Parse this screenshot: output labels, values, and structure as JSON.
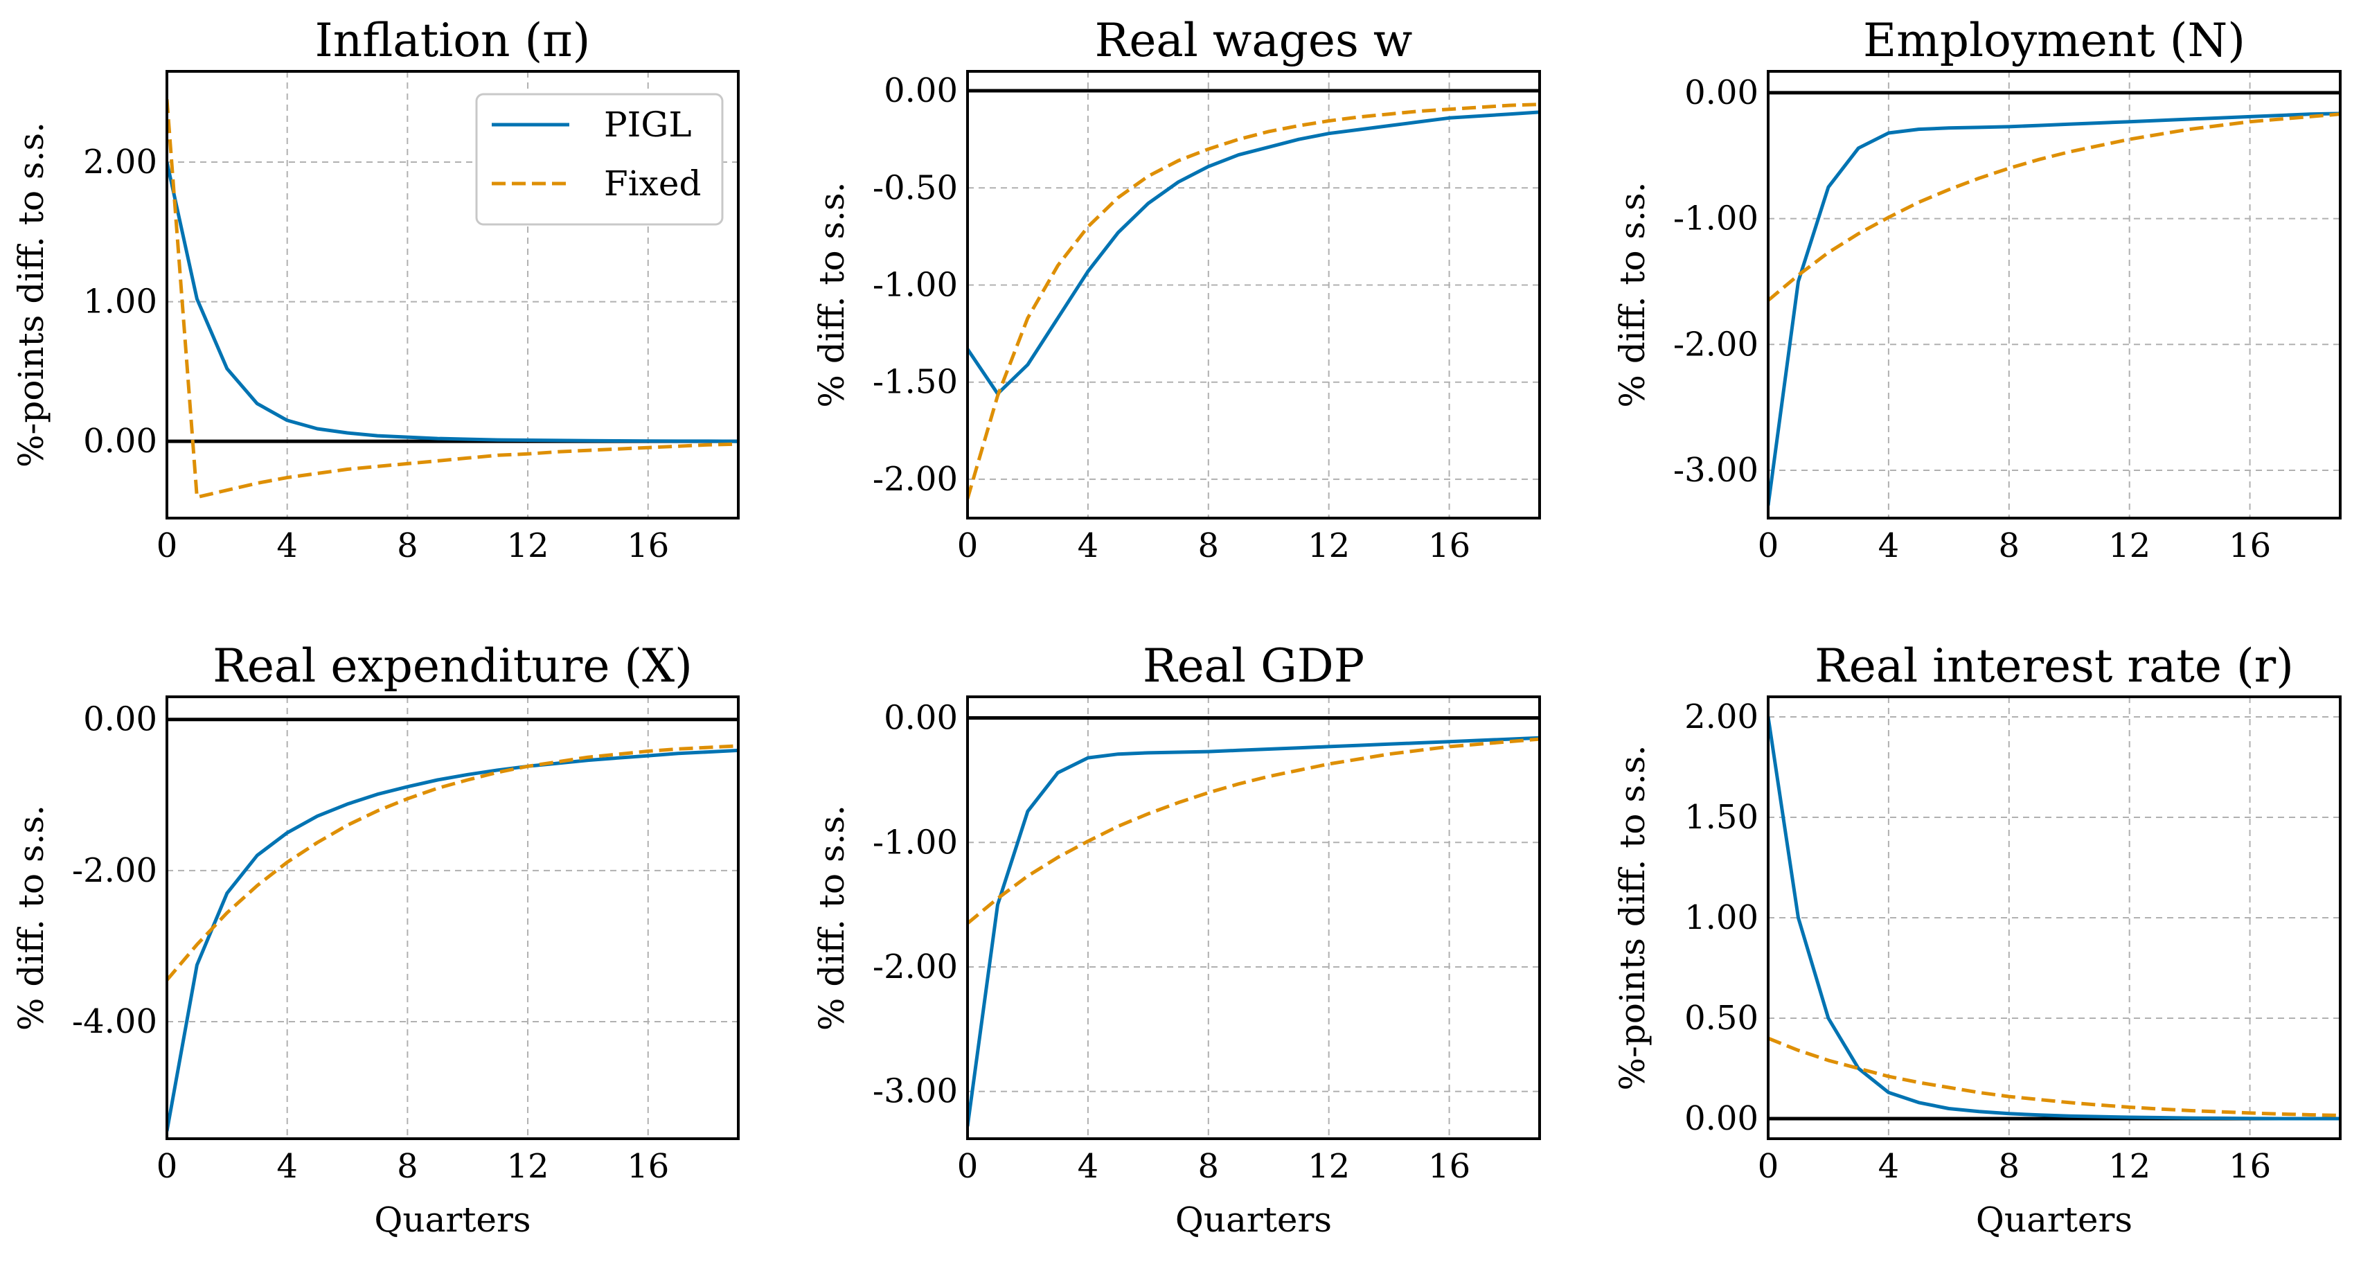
{
  "figure": {
    "legend": {
      "entries": [
        "PIGL",
        "Fixed"
      ],
      "placement": "upper-right of first panel"
    },
    "colors": {
      "PIGL": "#0173b2",
      "Fixed": "#de8f05",
      "zero_line": "#000000",
      "grid": "#b0b0b0"
    }
  },
  "chart_data": [
    {
      "type": "line",
      "title": "Inflation (π)",
      "ylabel": "%-points diff. to s.s.",
      "xlabel": "",
      "xlim": [
        0,
        19
      ],
      "ylim": [
        -0.55,
        2.65
      ],
      "xticks": [
        0,
        4,
        8,
        12,
        16
      ],
      "yticks": [
        0,
        1,
        2
      ],
      "ytick_labels": [
        "0.00",
        "1.00",
        "2.00"
      ],
      "grid": true,
      "legend": true,
      "x": [
        0,
        1,
        2,
        3,
        4,
        5,
        6,
        7,
        8,
        9,
        10,
        11,
        12,
        13,
        14,
        15,
        16,
        17,
        18,
        19
      ],
      "series": [
        {
          "name": "PIGL",
          "style": "solid",
          "values": [
            2.0,
            1.02,
            0.52,
            0.27,
            0.15,
            0.09,
            0.06,
            0.04,
            0.03,
            0.02,
            0.015,
            0.01,
            0.008,
            0.006,
            0.004,
            0.003,
            0.002,
            0.001,
            0.001,
            0.0
          ]
        },
        {
          "name": "Fixed",
          "style": "dashed",
          "values": [
            2.45,
            -0.4,
            -0.35,
            -0.3,
            -0.26,
            -0.23,
            -0.2,
            -0.18,
            -0.16,
            -0.14,
            -0.12,
            -0.1,
            -0.09,
            -0.075,
            -0.065,
            -0.055,
            -0.045,
            -0.035,
            -0.025,
            -0.02
          ]
        }
      ]
    },
    {
      "type": "line",
      "title": "Real wages w",
      "ylabel": "% diff. to s.s.",
      "xlabel": "",
      "xlim": [
        0,
        19
      ],
      "ylim": [
        -2.2,
        0.1
      ],
      "xticks": [
        0,
        4,
        8,
        12,
        16
      ],
      "yticks": [
        0,
        -0.5,
        -1,
        -1.5,
        -2
      ],
      "ytick_labels": [
        "0.00",
        "-0.50",
        "-1.00",
        "-1.50",
        "-2.00"
      ],
      "grid": true,
      "legend": false,
      "x": [
        0,
        1,
        2,
        3,
        4,
        5,
        6,
        7,
        8,
        9,
        10,
        11,
        12,
        13,
        14,
        15,
        16,
        17,
        18,
        19
      ],
      "series": [
        {
          "name": "PIGL",
          "style": "solid",
          "values": [
            -1.33,
            -1.56,
            -1.41,
            -1.17,
            -0.93,
            -0.73,
            -0.58,
            -0.47,
            -0.39,
            -0.33,
            -0.29,
            -0.25,
            -0.22,
            -0.2,
            -0.18,
            -0.16,
            -0.14,
            -0.13,
            -0.12,
            -0.11
          ]
        },
        {
          "name": "Fixed",
          "style": "dashed",
          "values": [
            -2.1,
            -1.57,
            -1.17,
            -0.9,
            -0.7,
            -0.55,
            -0.44,
            -0.36,
            -0.3,
            -0.25,
            -0.21,
            -0.18,
            -0.155,
            -0.135,
            -0.12,
            -0.105,
            -0.095,
            -0.085,
            -0.075,
            -0.07
          ]
        }
      ]
    },
    {
      "type": "line",
      "title": "Employment (N)",
      "ylabel": "% diff. to s.s.",
      "xlabel": "",
      "xlim": [
        0,
        19
      ],
      "ylim": [
        -3.38,
        0.17
      ],
      "xticks": [
        0,
        4,
        8,
        12,
        16
      ],
      "yticks": [
        0,
        -1,
        -2,
        -3
      ],
      "ytick_labels": [
        "0.00",
        "-1.00",
        "-2.00",
        "-3.00"
      ],
      "grid": true,
      "legend": false,
      "x": [
        0,
        1,
        2,
        3,
        4,
        5,
        6,
        7,
        8,
        9,
        10,
        11,
        12,
        13,
        14,
        15,
        16,
        17,
        18,
        19
      ],
      "series": [
        {
          "name": "PIGL",
          "style": "solid",
          "values": [
            -3.28,
            -1.5,
            -0.75,
            -0.44,
            -0.32,
            -0.29,
            -0.28,
            -0.275,
            -0.27,
            -0.26,
            -0.25,
            -0.24,
            -0.23,
            -0.22,
            -0.21,
            -0.2,
            -0.19,
            -0.18,
            -0.17,
            -0.165
          ]
        },
        {
          "name": "Fixed",
          "style": "dashed",
          "values": [
            -1.65,
            -1.45,
            -1.27,
            -1.12,
            -0.99,
            -0.87,
            -0.77,
            -0.68,
            -0.6,
            -0.53,
            -0.47,
            -0.42,
            -0.37,
            -0.33,
            -0.29,
            -0.26,
            -0.23,
            -0.21,
            -0.19,
            -0.17
          ]
        }
      ]
    },
    {
      "type": "line",
      "title": "Real expenditure (X)",
      "ylabel": "% diff. to s.s.",
      "xlabel": "Quarters",
      "xlim": [
        0,
        19
      ],
      "ylim": [
        -5.55,
        0.3
      ],
      "xticks": [
        0,
        4,
        8,
        12,
        16
      ],
      "yticks": [
        0,
        -2,
        -4
      ],
      "ytick_labels": [
        "0.00",
        "-2.00",
        "-4.00"
      ],
      "grid": true,
      "legend": false,
      "x": [
        0,
        1,
        2,
        3,
        4,
        5,
        6,
        7,
        8,
        9,
        10,
        11,
        12,
        13,
        14,
        15,
        16,
        17,
        18,
        19
      ],
      "series": [
        {
          "name": "PIGL",
          "style": "solid",
          "values": [
            -5.45,
            -3.25,
            -2.3,
            -1.8,
            -1.5,
            -1.28,
            -1.12,
            -0.99,
            -0.89,
            -0.8,
            -0.73,
            -0.67,
            -0.62,
            -0.58,
            -0.54,
            -0.51,
            -0.48,
            -0.45,
            -0.43,
            -0.41
          ]
        },
        {
          "name": "Fixed",
          "style": "dashed",
          "values": [
            -3.45,
            -2.98,
            -2.56,
            -2.2,
            -1.89,
            -1.63,
            -1.4,
            -1.21,
            -1.05,
            -0.91,
            -0.8,
            -0.7,
            -0.62,
            -0.56,
            -0.5,
            -0.46,
            -0.42,
            -0.39,
            -0.37,
            -0.35
          ]
        }
      ]
    },
    {
      "type": "line",
      "title": "Real GDP",
      "ylabel": "% diff. to s.s.",
      "xlabel": "Quarters",
      "xlim": [
        0,
        19
      ],
      "ylim": [
        -3.38,
        0.17
      ],
      "xticks": [
        0,
        4,
        8,
        12,
        16
      ],
      "yticks": [
        0,
        -1,
        -2,
        -3
      ],
      "ytick_labels": [
        "0.00",
        "-1.00",
        "-2.00",
        "-3.00"
      ],
      "grid": true,
      "legend": false,
      "x": [
        0,
        1,
        2,
        3,
        4,
        5,
        6,
        7,
        8,
        9,
        10,
        11,
        12,
        13,
        14,
        15,
        16,
        17,
        18,
        19
      ],
      "series": [
        {
          "name": "PIGL",
          "style": "solid",
          "values": [
            -3.28,
            -1.5,
            -0.75,
            -0.44,
            -0.32,
            -0.29,
            -0.28,
            -0.275,
            -0.27,
            -0.26,
            -0.25,
            -0.24,
            -0.23,
            -0.22,
            -0.21,
            -0.2,
            -0.19,
            -0.18,
            -0.17,
            -0.16
          ]
        },
        {
          "name": "Fixed",
          "style": "dashed",
          "values": [
            -1.65,
            -1.45,
            -1.27,
            -1.12,
            -0.99,
            -0.87,
            -0.77,
            -0.68,
            -0.6,
            -0.53,
            -0.47,
            -0.42,
            -0.37,
            -0.33,
            -0.29,
            -0.26,
            -0.23,
            -0.21,
            -0.19,
            -0.17
          ]
        }
      ]
    },
    {
      "type": "line",
      "title": "Real interest rate (r)",
      "ylabel": "%-points diff. to s.s.",
      "xlabel": "Quarters",
      "xlim": [
        0,
        19
      ],
      "ylim": [
        -0.1,
        2.1
      ],
      "xticks": [
        0,
        4,
        8,
        12,
        16
      ],
      "yticks": [
        0,
        0.5,
        1,
        1.5,
        2
      ],
      "ytick_labels": [
        "0.00",
        "0.50",
        "1.00",
        "1.50",
        "2.00"
      ],
      "grid": true,
      "legend": false,
      "x": [
        0,
        1,
        2,
        3,
        4,
        5,
        6,
        7,
        8,
        9,
        10,
        11,
        12,
        13,
        14,
        15,
        16,
        17,
        18,
        19
      ],
      "series": [
        {
          "name": "PIGL",
          "style": "solid",
          "values": [
            2.0,
            1.0,
            0.5,
            0.25,
            0.13,
            0.08,
            0.05,
            0.035,
            0.025,
            0.018,
            0.013,
            0.01,
            0.007,
            0.005,
            0.003,
            0.002,
            0.001,
            0.0,
            0.0,
            0.0
          ]
        },
        {
          "name": "Fixed",
          "style": "dashed",
          "values": [
            0.4,
            0.34,
            0.29,
            0.25,
            0.21,
            0.18,
            0.155,
            0.13,
            0.11,
            0.095,
            0.08,
            0.068,
            0.057,
            0.048,
            0.04,
            0.034,
            0.028,
            0.023,
            0.019,
            0.016
          ]
        }
      ]
    }
  ]
}
